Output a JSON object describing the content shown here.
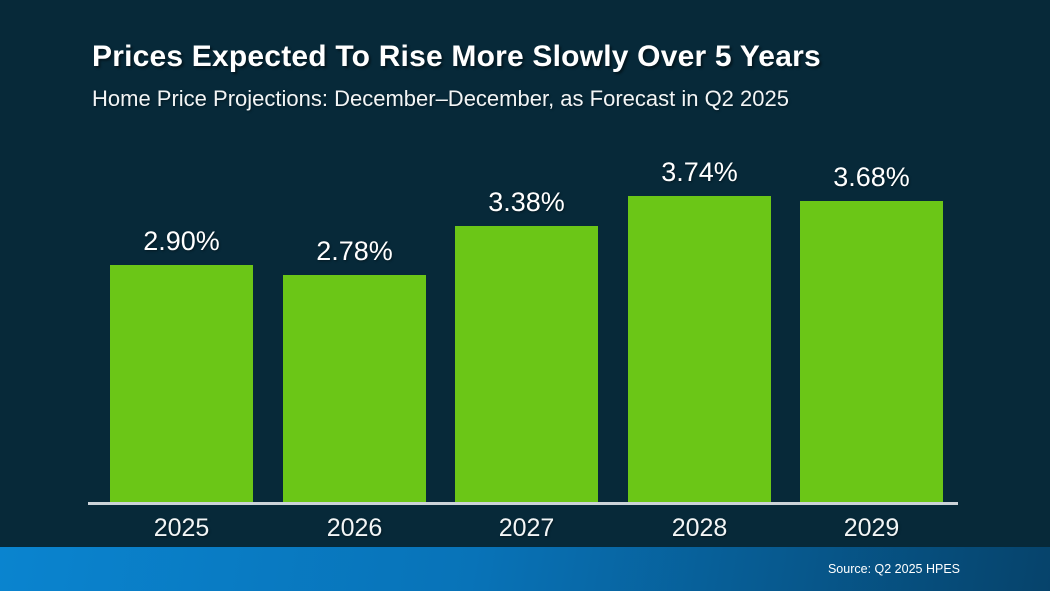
{
  "header": {
    "title": "Prices Expected To Rise More Slowly Over 5 Years",
    "subtitle": "Home Price Projections: December–December, as Forecast in Q2 2025"
  },
  "chart_data": {
    "type": "bar",
    "title": "Prices Expected To Rise More Slowly Over 5 Years",
    "subtitle": "Home Price Projections: December–December, as Forecast in Q2 2025",
    "categories": [
      "2025",
      "2026",
      "2027",
      "2028",
      "2029"
    ],
    "values": [
      2.9,
      2.78,
      3.38,
      3.74,
      3.68
    ],
    "value_labels": [
      "2.90%",
      "2.78%",
      "3.38%",
      "3.74%",
      "3.68%"
    ],
    "xlabel": "",
    "ylabel": "",
    "ylim": [
      0,
      3.74
    ],
    "grid": false,
    "legend": false,
    "y_axis_visible": false,
    "bar_color": "#6bc617"
  },
  "footer": {
    "source": "Source: Q2 2025 HPES"
  },
  "colors": {
    "background": "#072939",
    "bar_green": "#6bc617",
    "axis_line": "#ccd3d8",
    "text": "#ffffff",
    "footer_gradient_left": "#0a84cf",
    "footer_gradient_right": "#06436b"
  }
}
